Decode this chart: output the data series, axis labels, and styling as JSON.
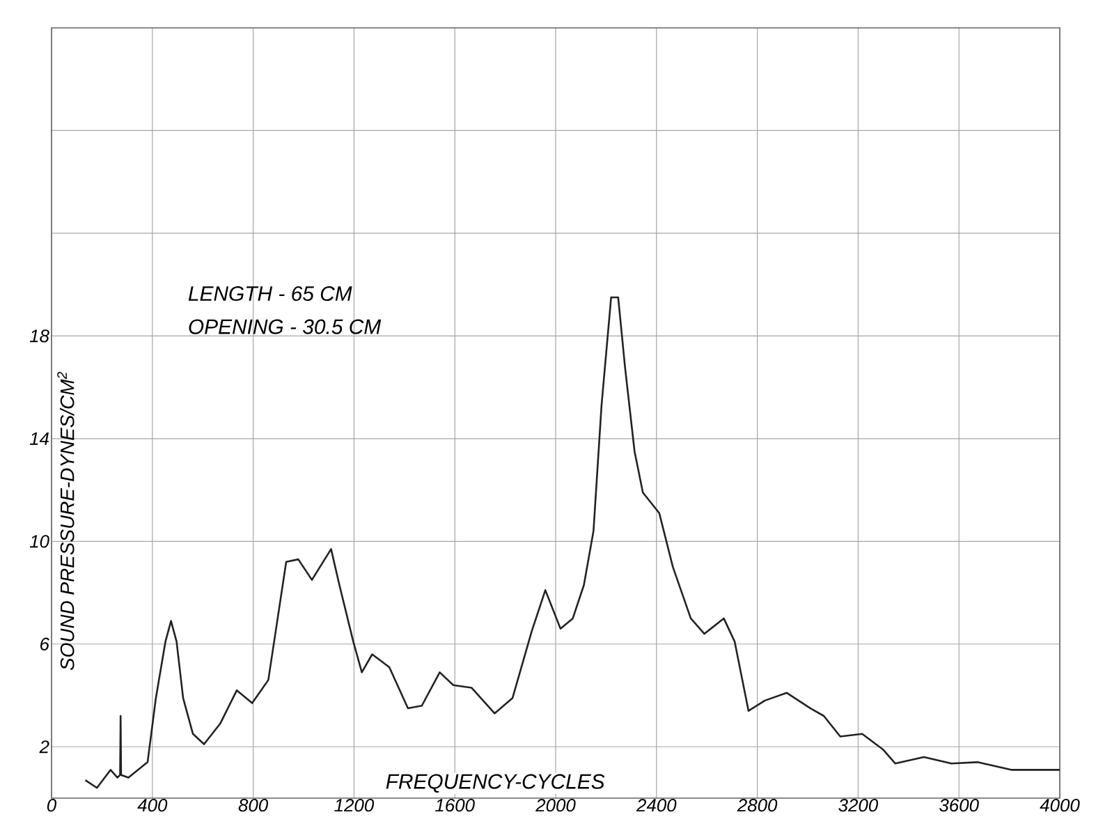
{
  "chart_data": {
    "type": "line",
    "xlabel": "FREQUENCY-CYCLES",
    "ylabel": "SOUND PRESSURE-DYNES/CM$^{2}$",
    "annotations": [
      "LENGTH - 65 CM",
      "OPENING - 30.5 CM"
    ],
    "xlim": [
      0,
      4000
    ],
    "ylim": [
      0,
      30
    ],
    "xticks": [
      0,
      400,
      800,
      1200,
      1600,
      2000,
      2400,
      2800,
      3200,
      3600,
      4000
    ],
    "yticks": [
      2,
      6,
      10,
      14,
      18,
      {
        "value": 22,
        "label": null
      },
      {
        "value": 26,
        "label": null
      }
    ],
    "grid": true,
    "marker": "none",
    "line_style": "solid",
    "series": [
      {
        "color": "#222222",
        "x": [
          134,
          180,
          234,
          261,
          272,
          274,
          276,
          305,
          381,
          414,
          452,
          474,
          496,
          522,
          561,
          605,
          669,
          735,
          796,
          860,
          897,
          931,
          979,
          1033,
          1109,
          1142,
          1197,
          1231,
          1272,
          1340,
          1414,
          1469,
          1540,
          1594,
          1666,
          1758,
          1829,
          1905,
          1959,
          2019,
          2068,
          2112,
          2150,
          2182,
          2220,
          2248,
          2275,
          2313,
          2346,
          2411,
          2465,
          2536,
          2590,
          2667,
          2710,
          2765,
          2830,
          2917,
          3010,
          3064,
          3129,
          3216,
          3298,
          3347,
          3461,
          3570,
          3673,
          3810,
          4000
        ],
        "values": [
          0.7,
          0.4,
          1.1,
          0.8,
          0.9,
          3.2,
          0.9,
          0.8,
          1.4,
          3.9,
          6.1,
          6.9,
          6.1,
          3.9,
          2.5,
          2.1,
          2.9,
          4.2,
          3.7,
          4.6,
          7.0,
          9.2,
          9.3,
          8.5,
          9.7,
          8.3,
          6.1,
          4.9,
          5.6,
          5.1,
          3.5,
          3.6,
          4.9,
          4.4,
          4.3,
          3.3,
          3.9,
          6.5,
          8.1,
          6.6,
          7.0,
          8.3,
          10.4,
          15.3,
          19.5,
          19.5,
          16.8,
          13.5,
          11.9,
          11.1,
          9.0,
          7.0,
          6.4,
          7.0,
          6.1,
          3.4,
          3.8,
          4.1,
          3.5,
          3.2,
          2.4,
          2.5,
          1.9,
          1.35,
          1.6,
          1.35,
          1.4,
          1.1,
          1.1
        ]
      }
    ]
  }
}
